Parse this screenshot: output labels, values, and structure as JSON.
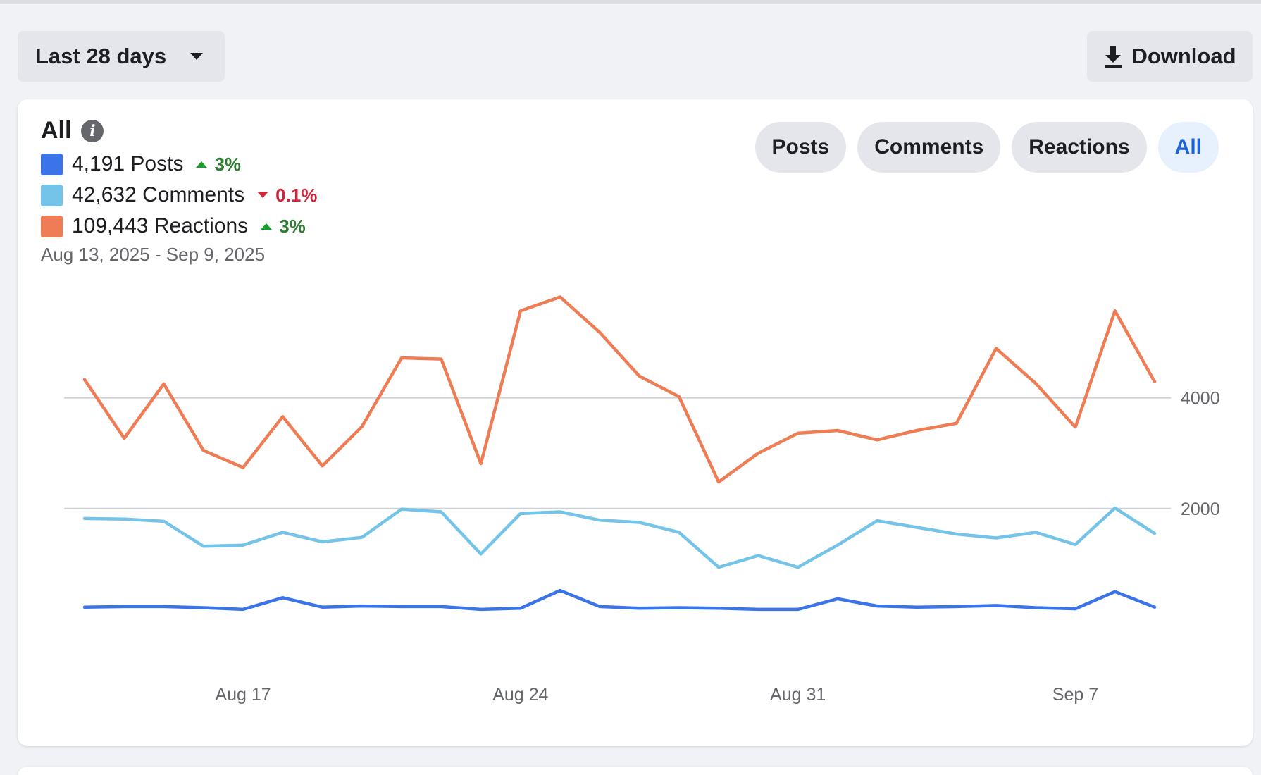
{
  "toolbar": {
    "range_label": "Last 28 days",
    "download_label": "Download"
  },
  "card": {
    "title": "All",
    "legend": [
      {
        "label": "4,191 Posts",
        "delta": "3%",
        "direction": "up",
        "color": "#3b73e8"
      },
      {
        "label": "42,632 Comments",
        "delta": "0.1%",
        "direction": "down",
        "color": "#74c3e8"
      },
      {
        "label": "109,443 Reactions",
        "delta": "3%",
        "direction": "up",
        "color": "#ee7d55"
      }
    ],
    "date_range": "Aug 13, 2025 - Sep 9, 2025",
    "filters": [
      {
        "label": "Posts",
        "active": false
      },
      {
        "label": "Comments",
        "active": false
      },
      {
        "label": "Reactions",
        "active": false
      },
      {
        "label": "All",
        "active": true
      }
    ]
  },
  "colors": {
    "up": "#2e7d32",
    "up_arrow": "#1a9c2b",
    "down": "#d0283a",
    "accent": "#1b64d8"
  },
  "chart_data": {
    "type": "line",
    "x": [
      "Aug 13",
      "Aug 14",
      "Aug 15",
      "Aug 16",
      "Aug 17",
      "Aug 18",
      "Aug 19",
      "Aug 20",
      "Aug 21",
      "Aug 22",
      "Aug 23",
      "Aug 24",
      "Aug 25",
      "Aug 26",
      "Aug 27",
      "Aug 28",
      "Aug 29",
      "Aug 30",
      "Aug 31",
      "Sep 1",
      "Sep 2",
      "Sep 3",
      "Sep 4",
      "Sep 5",
      "Sep 6",
      "Sep 7",
      "Sep 8",
      "Sep 9"
    ],
    "xticks": [
      "Aug 17",
      "Aug 24",
      "Aug 31",
      "Sep 7"
    ],
    "yticks": [
      2000,
      4000
    ],
    "ylim": [
      0,
      6000
    ],
    "grid": true,
    "series": [
      {
        "name": "Reactions",
        "color": "#ee7d55",
        "values": [
          4330,
          3270,
          4250,
          3050,
          2740,
          3660,
          2770,
          3480,
          4720,
          4700,
          2810,
          5570,
          5820,
          5180,
          4390,
          4020,
          2480,
          3000,
          3360,
          3410,
          3240,
          3410,
          3540,
          4890,
          4260,
          3470,
          5570,
          4290
        ]
      },
      {
        "name": "Comments",
        "color": "#74c3e8",
        "values": [
          1820,
          1810,
          1770,
          1320,
          1340,
          1570,
          1400,
          1480,
          1990,
          1940,
          1180,
          1910,
          1940,
          1790,
          1750,
          1570,
          940,
          1150,
          940,
          1340,
          1780,
          1660,
          1540,
          1470,
          1570,
          1350,
          2010,
          1550
        ]
      },
      {
        "name": "Posts",
        "color": "#3b73e8",
        "values": [
          220,
          230,
          230,
          210,
          180,
          390,
          220,
          240,
          230,
          230,
          180,
          200,
          520,
          230,
          200,
          210,
          200,
          180,
          180,
          370,
          240,
          220,
          230,
          250,
          210,
          190,
          500,
          220
        ]
      }
    ]
  }
}
